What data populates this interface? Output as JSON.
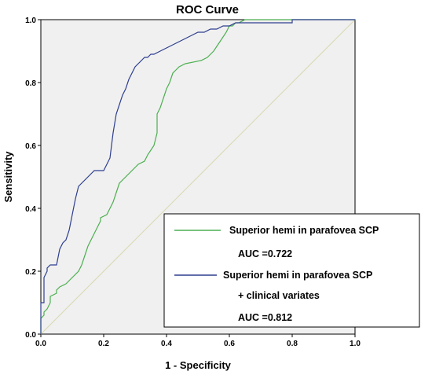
{
  "chart_data": {
    "type": "line",
    "title": "ROC Curve",
    "xlabel": "1 - Specificity",
    "ylabel": "Sensitivity",
    "xlim": [
      0,
      1
    ],
    "ylim": [
      0,
      1
    ],
    "x_ticks": [
      "0.0",
      "0.2",
      "0.4",
      "0.6",
      "0.8",
      "1.0"
    ],
    "y_ticks": [
      "0.0",
      "0.2",
      "0.4",
      "0.6",
      "0.8",
      "1.0"
    ],
    "grid": false,
    "legend_position": "bottom-right",
    "reference_line": {
      "from": [
        0,
        0
      ],
      "to": [
        1,
        1
      ],
      "color": "#d8d8b0"
    },
    "series": [
      {
        "name": "Superior hemi in parafovea SCP",
        "color": "#4caf50",
        "x": [
          0.0,
          0.0,
          0.01,
          0.01,
          0.02,
          0.03,
          0.03,
          0.05,
          0.05,
          0.06,
          0.08,
          0.09,
          0.12,
          0.13,
          0.14,
          0.15,
          0.16,
          0.17,
          0.18,
          0.19,
          0.19,
          0.21,
          0.22,
          0.23,
          0.24,
          0.25,
          0.26,
          0.27,
          0.28,
          0.29,
          0.3,
          0.31,
          0.33,
          0.34,
          0.36,
          0.37,
          0.37,
          0.38,
          0.39,
          0.4,
          0.41,
          0.42,
          0.43,
          0.44,
          0.46,
          0.51,
          0.53,
          0.55,
          0.57,
          0.59,
          0.6,
          0.61,
          0.62,
          0.63,
          0.65,
          0.8,
          0.81,
          1.0
        ],
        "y": [
          0.0,
          0.05,
          0.06,
          0.07,
          0.08,
          0.1,
          0.12,
          0.13,
          0.14,
          0.15,
          0.16,
          0.17,
          0.2,
          0.22,
          0.25,
          0.28,
          0.3,
          0.32,
          0.34,
          0.36,
          0.37,
          0.38,
          0.4,
          0.42,
          0.45,
          0.48,
          0.49,
          0.5,
          0.51,
          0.52,
          0.53,
          0.54,
          0.55,
          0.57,
          0.6,
          0.64,
          0.7,
          0.72,
          0.75,
          0.78,
          0.8,
          0.83,
          0.84,
          0.85,
          0.86,
          0.87,
          0.88,
          0.9,
          0.93,
          0.96,
          0.98,
          0.98,
          0.99,
          0.99,
          1.0,
          1.0,
          1.0,
          1.0
        ]
      },
      {
        "name": "Superior hemi in parafovea SCP + clinical variates",
        "color": "#2e3f8f",
        "x": [
          0.0,
          0.0,
          0.01,
          0.01,
          0.02,
          0.02,
          0.03,
          0.05,
          0.06,
          0.07,
          0.08,
          0.09,
          0.1,
          0.11,
          0.12,
          0.13,
          0.14,
          0.15,
          0.17,
          0.2,
          0.22,
          0.23,
          0.24,
          0.25,
          0.26,
          0.27,
          0.28,
          0.29,
          0.3,
          0.31,
          0.32,
          0.33,
          0.34,
          0.35,
          0.36,
          0.38,
          0.4,
          0.42,
          0.44,
          0.46,
          0.48,
          0.5,
          0.52,
          0.54,
          0.56,
          0.58,
          0.6,
          0.62,
          0.64,
          0.66,
          0.8,
          0.8,
          1.0
        ],
        "y": [
          0.0,
          0.1,
          0.1,
          0.18,
          0.2,
          0.21,
          0.22,
          0.22,
          0.27,
          0.29,
          0.3,
          0.33,
          0.38,
          0.43,
          0.47,
          0.48,
          0.49,
          0.5,
          0.52,
          0.52,
          0.56,
          0.64,
          0.7,
          0.73,
          0.76,
          0.78,
          0.81,
          0.83,
          0.85,
          0.86,
          0.87,
          0.88,
          0.88,
          0.89,
          0.89,
          0.9,
          0.91,
          0.92,
          0.93,
          0.94,
          0.95,
          0.96,
          0.96,
          0.97,
          0.97,
          0.98,
          0.98,
          0.99,
          0.99,
          0.99,
          0.99,
          1.0,
          1.0
        ]
      }
    ],
    "legend": {
      "entries": [
        {
          "label": "Superior hemi in parafovea SCP",
          "color": "#4caf50",
          "note": "AUC =0.722"
        },
        {
          "label": "Superior hemi in parafovea SCP",
          "label_line2": "+ clinical variates",
          "color": "#2e3f8f",
          "note": "AUC =0.812"
        }
      ]
    }
  }
}
